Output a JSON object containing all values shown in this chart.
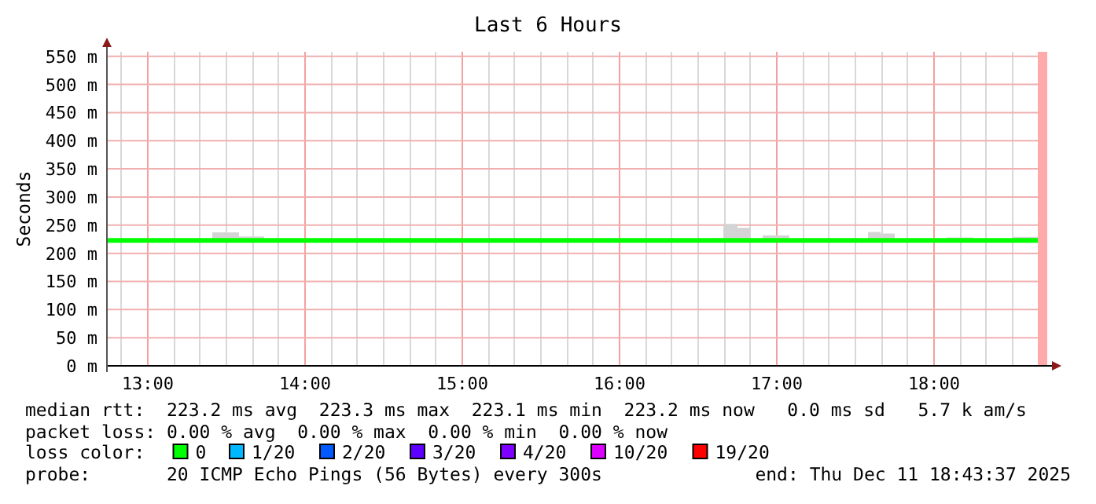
{
  "chart_data": {
    "type": "line",
    "title": "Last 6 Hours",
    "ylabel": "Seconds",
    "x": [
      12.74,
      12.92,
      13.08,
      13.25,
      13.41,
      13.58,
      13.74,
      13.92,
      14.08,
      14.25,
      14.42,
      14.58,
      14.75,
      14.92,
      15.08,
      15.25,
      15.42,
      15.58,
      15.75,
      15.92,
      16.08,
      16.25,
      16.42,
      16.58,
      16.66,
      16.75,
      16.83,
      16.91,
      17.08,
      17.25,
      17.42,
      17.58,
      17.66,
      17.75,
      17.92,
      18.08,
      18.25,
      18.5,
      18.66
    ],
    "series": [
      {
        "name": "0",
        "color": "#00ff00",
        "values": [
          223,
          223,
          223,
          223,
          223,
          223,
          223,
          223,
          223,
          223,
          223,
          223,
          223,
          223,
          223,
          223,
          223,
          223,
          223,
          223,
          223,
          223,
          223,
          223,
          223,
          223,
          223,
          223,
          223,
          223,
          223,
          223,
          223,
          223,
          223,
          223,
          223,
          223,
          223
        ],
        "lower": [
          221,
          221,
          221,
          221,
          221,
          221,
          221,
          221,
          221,
          221,
          221,
          221,
          221,
          221,
          221,
          221,
          221,
          221,
          221,
          221,
          221,
          221,
          221,
          221,
          221,
          221,
          221,
          221,
          221,
          221,
          221,
          221,
          221,
          221,
          221,
          221,
          221,
          221,
          221
        ],
        "upper": [
          226,
          226,
          226,
          226,
          237,
          230,
          226,
          226,
          226,
          226,
          226,
          226,
          226,
          226,
          226,
          226,
          226,
          226,
          226,
          226,
          226,
          226,
          226,
          227,
          252,
          245,
          226,
          232,
          226,
          226,
          226,
          238,
          235,
          226,
          226,
          228,
          226,
          229,
          229
        ]
      },
      {
        "name": "1/20",
        "color": "#00b8ff",
        "values": [
          null,
          null,
          null,
          null,
          null,
          null,
          null,
          null,
          null,
          null,
          null,
          null,
          null,
          null,
          null,
          null,
          null,
          null,
          null,
          null,
          null,
          null,
          null,
          null,
          null,
          null,
          null,
          null,
          null,
          null,
          null,
          null,
          null,
          null,
          null,
          null,
          null,
          null,
          null
        ]
      },
      {
        "name": "2/20",
        "color": "#0059ff",
        "values": [
          null,
          null,
          null,
          null,
          null,
          null,
          null,
          null,
          null,
          null,
          null,
          null,
          null,
          null,
          null,
          null,
          null,
          null,
          null,
          null,
          null,
          null,
          null,
          null,
          null,
          null,
          null,
          null,
          null,
          null,
          null,
          null,
          null,
          null,
          null,
          null,
          null,
          null,
          null
        ]
      },
      {
        "name": "3/20",
        "color": "#5e00ff",
        "values": [
          null,
          null,
          null,
          null,
          null,
          null,
          null,
          null,
          null,
          null,
          null,
          null,
          null,
          null,
          null,
          null,
          null,
          null,
          null,
          null,
          null,
          null,
          null,
          null,
          null,
          null,
          null,
          null,
          null,
          null,
          null,
          null,
          null,
          null,
          null,
          null,
          null,
          null,
          null
        ]
      },
      {
        "name": "4/20",
        "color": "#7e00ff",
        "values": [
          null,
          null,
          null,
          null,
          null,
          null,
          null,
          null,
          null,
          null,
          null,
          null,
          null,
          null,
          null,
          null,
          null,
          null,
          null,
          null,
          null,
          null,
          null,
          null,
          null,
          null,
          null,
          null,
          null,
          null,
          null,
          null,
          null,
          null,
          null,
          null,
          null,
          null,
          null
        ]
      },
      {
        "name": "10/20",
        "color": "#dd00ff",
        "values": [
          null,
          null,
          null,
          null,
          null,
          null,
          null,
          null,
          null,
          null,
          null,
          null,
          null,
          null,
          null,
          null,
          null,
          null,
          null,
          null,
          null,
          null,
          null,
          null,
          null,
          null,
          null,
          null,
          null,
          null,
          null,
          null,
          null,
          null,
          null,
          null,
          null,
          null,
          null
        ]
      },
      {
        "name": "19/20",
        "color": "#ff0000",
        "values": [
          null,
          null,
          null,
          null,
          null,
          null,
          null,
          null,
          null,
          null,
          null,
          null,
          null,
          null,
          null,
          null,
          null,
          null,
          null,
          null,
          null,
          null,
          null,
          null,
          null,
          null,
          null,
          null,
          null,
          null,
          null,
          null,
          null,
          null,
          null,
          null,
          null,
          null,
          null
        ]
      }
    ],
    "legend_title": "loss color:",
    "legend": "bottom",
    "xlim": [
      12.74,
      18.72
    ],
    "xticks": [
      {
        "value": 12.83,
        "label": null
      },
      {
        "value": 13,
        "label": "13:00"
      },
      {
        "value": 13.17,
        "label": null
      },
      {
        "value": 13.33,
        "label": null
      },
      {
        "value": 13.5,
        "label": null
      },
      {
        "value": 13.67,
        "label": null
      },
      {
        "value": 13.83,
        "label": null
      },
      {
        "value": 14,
        "label": "14:00"
      },
      {
        "value": 14.17,
        "label": null
      },
      {
        "value": 14.33,
        "label": null
      },
      {
        "value": 14.5,
        "label": null
      },
      {
        "value": 14.67,
        "label": null
      },
      {
        "value": 14.83,
        "label": null
      },
      {
        "value": 15,
        "label": "15:00"
      },
      {
        "value": 15.17,
        "label": null
      },
      {
        "value": 15.33,
        "label": null
      },
      {
        "value": 15.5,
        "label": null
      },
      {
        "value": 15.67,
        "label": null
      },
      {
        "value": 15.83,
        "label": null
      },
      {
        "value": 16,
        "label": "16:00"
      },
      {
        "value": 16.17,
        "label": null
      },
      {
        "value": 16.33,
        "label": null
      },
      {
        "value": 16.5,
        "label": null
      },
      {
        "value": 16.67,
        "label": null
      },
      {
        "value": 16.83,
        "label": null
      },
      {
        "value": 17,
        "label": "17:00"
      },
      {
        "value": 17.17,
        "label": null
      },
      {
        "value": 17.33,
        "label": null
      },
      {
        "value": 17.5,
        "label": null
      },
      {
        "value": 17.67,
        "label": null
      },
      {
        "value": 17.83,
        "label": null
      },
      {
        "value": 18,
        "label": "18:00"
      },
      {
        "value": 18.17,
        "label": null
      },
      {
        "value": 18.33,
        "label": null
      },
      {
        "value": 18.5,
        "label": null
      }
    ],
    "ylim": [
      0,
      558
    ],
    "yticks": [
      {
        "value": 0,
        "label": "0 m"
      },
      {
        "value": 50,
        "label": "50 m"
      },
      {
        "value": 100,
        "label": "100 m"
      },
      {
        "value": 150,
        "label": "150 m"
      },
      {
        "value": 200,
        "label": "200 m"
      },
      {
        "value": 250,
        "label": "250 m"
      },
      {
        "value": 300,
        "label": "300 m"
      },
      {
        "value": 350,
        "label": "350 m"
      },
      {
        "value": 400,
        "label": "400 m"
      },
      {
        "value": 450,
        "label": "450 m"
      },
      {
        "value": 500,
        "label": "500 m"
      },
      {
        "value": 550,
        "label": "550 m"
      }
    ],
    "grid": true,
    "bands": [
      {
        "axis": "x",
        "from": 18.66,
        "to": 18.72,
        "color": "#ffaaaa"
      }
    ],
    "annotations": [
      "median rtt:  223.2 ms avg  223.3 ms max  223.1 ms min  223.2 ms now   0.0 ms sd   5.7 k am/s",
      "packet loss: 0.00 % avg  0.00 % max  0.00 % min  0.00 % now",
      "probe:       20 ICMP Echo Pings (56 Bytes) every 300s",
      "end: Thu Dec 11 18:43:37 2025"
    ]
  }
}
